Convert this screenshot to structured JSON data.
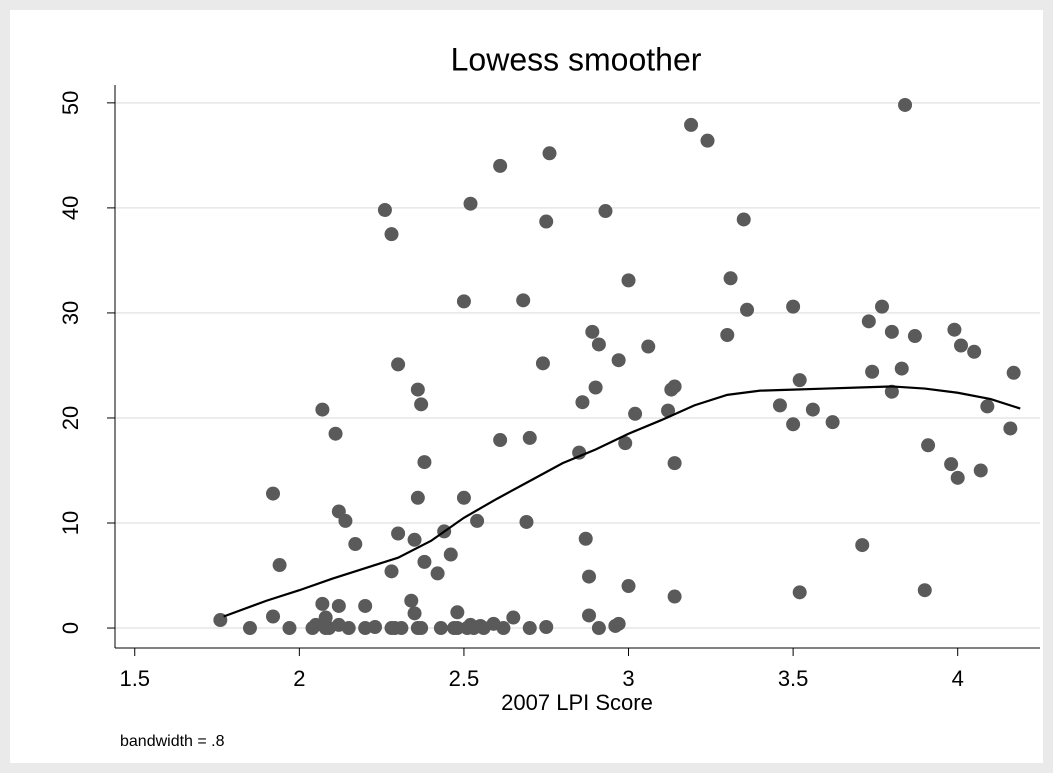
{
  "chart_data": {
    "type": "scatter",
    "title": "Lowess smoother",
    "x_label": "2007 LPI Score",
    "note": "bandwidth = .8",
    "xlim": [
      1.44,
      4.25
    ],
    "ylim": [
      -1.9,
      51.7
    ],
    "xticks": [
      1.5,
      2,
      2.5,
      3,
      3.5,
      4
    ],
    "yticks": [
      0,
      10,
      20,
      30,
      40,
      50
    ],
    "grid": true,
    "series": [
      {
        "mode": "markers",
        "color": "#5a5a5a",
        "x": [
          1.76,
          1.85,
          1.92,
          1.92,
          1.94,
          1.97,
          2.04,
          2.05,
          2.07,
          2.07,
          2.08,
          2.08,
          2.09,
          2.11,
          2.12,
          2.12,
          2.12,
          2.14,
          2.15,
          2.17,
          2.2,
          2.2,
          2.23,
          2.26,
          2.28,
          2.28,
          2.28,
          2.29,
          2.3,
          2.3,
          2.31,
          2.34,
          2.35,
          2.35,
          2.36,
          2.36,
          2.36,
          2.37,
          2.37,
          2.38,
          2.38,
          2.42,
          2.43,
          2.44,
          2.46,
          2.47,
          2.48,
          2.48,
          2.5,
          2.5,
          2.51,
          2.52,
          2.52,
          2.53,
          2.54,
          2.55,
          2.56,
          2.59,
          2.61,
          2.61,
          2.62,
          2.65,
          2.68,
          2.69,
          2.7,
          2.7,
          2.74,
          2.75,
          2.75,
          2.76,
          2.86,
          2.85,
          2.87,
          2.88,
          2.88,
          2.89,
          2.91,
          2.9,
          2.91,
          2.93,
          2.96,
          2.97,
          2.97,
          2.99,
          3.0,
          3.0,
          3.02,
          3.06,
          3.12,
          3.13,
          3.14,
          3.14,
          3.14,
          3.19,
          3.24,
          3.3,
          3.31,
          3.35,
          3.36,
          3.46,
          3.5,
          3.5,
          3.52,
          3.52,
          3.56,
          3.62,
          3.71,
          3.73,
          3.74,
          3.77,
          3.8,
          3.8,
          3.83,
          3.84,
          3.87,
          3.9,
          3.91,
          3.98,
          3.99,
          4.0,
          4.01,
          4.05,
          4.07,
          4.09,
          4.16,
          4.17
        ],
        "values": [
          0.76,
          0,
          1.1,
          12.8,
          6.0,
          0,
          0,
          0.3,
          2.3,
          20.8,
          1.0,
          0,
          0,
          18.5,
          11.1,
          0.3,
          2.1,
          10.2,
          0,
          8.0,
          2.1,
          0,
          0.1,
          39.8,
          5.4,
          37.5,
          0,
          0,
          25.1,
          9.0,
          0,
          2.6,
          8.4,
          1.4,
          22.7,
          0,
          12.4,
          21.3,
          0,
          6.3,
          15.8,
          5.2,
          0,
          9.2,
          7.0,
          0,
          1.5,
          0,
          12.4,
          31.1,
          0,
          40.4,
          0.3,
          0,
          10.2,
          0.2,
          0,
          0.4,
          17.9,
          44.0,
          0,
          1.0,
          31.2,
          10.1,
          18.1,
          0,
          25.2,
          38.7,
          0.1,
          45.2,
          21.5,
          16.7,
          8.5,
          4.9,
          1.2,
          28.2,
          27.0,
          22.9,
          0,
          39.7,
          0.2,
          25.5,
          0.4,
          17.6,
          33.1,
          4.0,
          20.4,
          26.8,
          20.7,
          22.7,
          23.0,
          15.7,
          3.0,
          47.9,
          46.4,
          27.9,
          33.3,
          38.9,
          30.3,
          21.2,
          30.6,
          19.4,
          23.6,
          3.4,
          20.8,
          19.6,
          7.9,
          29.2,
          24.4,
          30.6,
          28.2,
          22.5,
          24.7,
          49.8,
          27.8,
          3.6,
          17.4,
          15.6,
          28.4,
          14.3,
          26.9,
          26.3,
          15.0,
          21.1,
          19.0,
          24.3
        ]
      },
      {
        "mode": "line",
        "color": "#000000",
        "x": [
          1.77,
          1.9,
          2.0,
          2.1,
          2.2,
          2.3,
          2.4,
          2.5,
          2.6,
          2.7,
          2.8,
          2.9,
          3.0,
          3.1,
          3.2,
          3.3,
          3.4,
          3.5,
          3.6,
          3.7,
          3.8,
          3.9,
          4.0,
          4.1,
          4.19
        ],
        "values": [
          1.1,
          2.6,
          3.6,
          4.7,
          5.7,
          6.7,
          8.3,
          10.5,
          12.3,
          14.0,
          15.7,
          17.0,
          18.5,
          19.8,
          21.2,
          22.2,
          22.6,
          22.7,
          22.8,
          22.9,
          23.0,
          22.8,
          22.4,
          21.8,
          20.9
        ]
      }
    ]
  }
}
